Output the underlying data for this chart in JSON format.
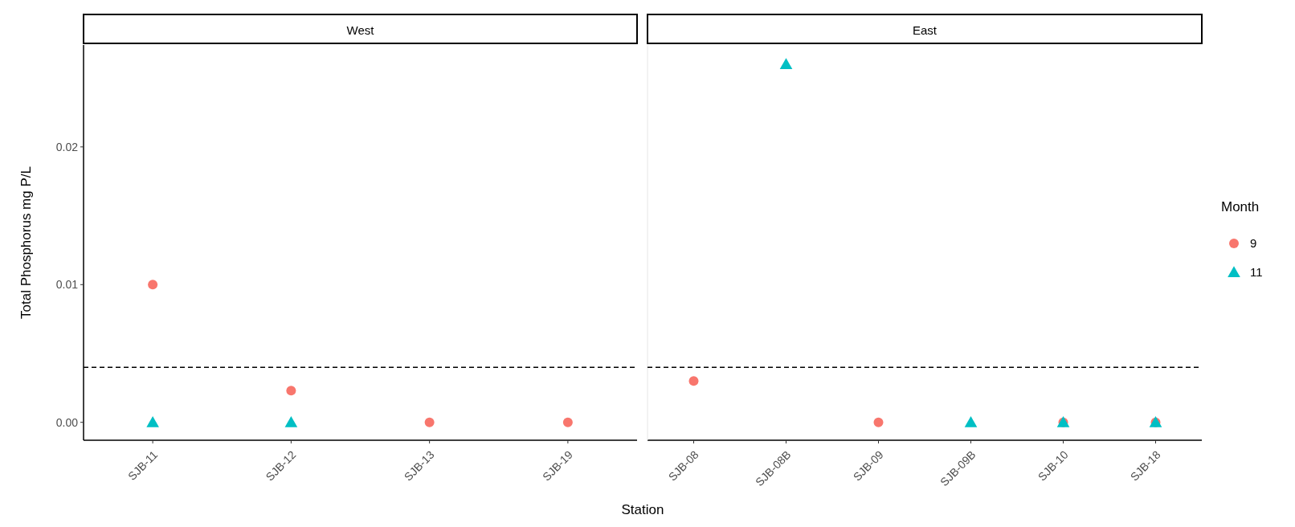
{
  "chart_data": [
    {
      "type": "scatter",
      "title": "West",
      "ylabel": "Total Phosphorus mg P/L",
      "xlabel": "Station",
      "categories": [
        "SJB-11",
        "SJB-12",
        "SJB-13",
        "SJB-19"
      ],
      "ylim": [
        -0.0013,
        0.0274
      ],
      "yticks": [
        {
          "value": 0,
          "label": "0.00"
        },
        {
          "value": 0.01,
          "label": "0.01"
        },
        {
          "value": 0.02,
          "label": "0.02"
        }
      ],
      "grid": false,
      "legend": false,
      "ref_lines": [
        {
          "axis": "y",
          "value": 0.004,
          "line_style": "dashed",
          "color": "#000000"
        }
      ],
      "series": [
        {
          "color": "#f8766d",
          "marker": "circle",
          "values": [
            0.01,
            0.0023,
            0,
            0
          ]
        },
        {
          "color": "#00bfc4",
          "marker": "triangle",
          "values": [
            0,
            0,
            null,
            null
          ]
        }
      ]
    },
    {
      "type": "scatter",
      "title": "East",
      "legend_title": "Month",
      "categories": [
        "SJB-08",
        "SJB-08B",
        "SJB-09",
        "SJB-09B",
        "SJB-10",
        "SJB-18"
      ],
      "ylim": [
        -0.0013,
        0.0274
      ],
      "tick_labels": "x",
      "grid": false,
      "legend": "right",
      "ref_lines": [
        {
          "axis": "y",
          "value": 0.004,
          "line_style": "dashed",
          "color": "#000000"
        }
      ],
      "series": [
        {
          "name": "9",
          "color": "#f8766d",
          "marker": "circle",
          "values": [
            0.003,
            null,
            0,
            null,
            0,
            0
          ]
        },
        {
          "name": "11",
          "color": "#00bfc4",
          "marker": "triangle",
          "values": [
            null,
            0.026,
            null,
            0,
            0,
            0
          ]
        }
      ]
    }
  ]
}
